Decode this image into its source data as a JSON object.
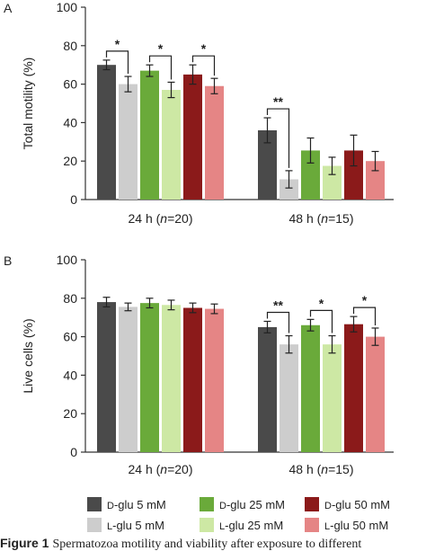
{
  "figure": {
    "caption_label": "Figure 1",
    "caption_text": "Spermatozoa motility and viability after exposure to different"
  },
  "colors": {
    "D-glu 5 mM": "#4a4a4a",
    "L-glu 5 mM": "#cdcdcd",
    "D-glu 25 mM": "#6aaa3a",
    "L-glu 25 mM": "#cde8a4",
    "D-glu 50 mM": "#8b1a1a",
    "L-glu 50 mM": "#e58585"
  },
  "legend": {
    "entries": [
      "D-glu 5 mM",
      "D-glu 25 mM",
      "D-glu 50 mM",
      "L-glu 5 mM",
      "L-glu 25 mM",
      "L-glu 50 mM"
    ]
  },
  "chart_data": [
    {
      "panel": "A",
      "type": "bar",
      "ylabel": "Total motility (%)",
      "ylim": [
        0,
        100
      ],
      "yticks": [
        0,
        20,
        40,
        60,
        80,
        100
      ],
      "categories": [
        "24 h (n=20)",
        "48 h (n=15)"
      ],
      "series": [
        {
          "name": "D-glu 5 mM",
          "values": [
            70,
            36
          ],
          "errors": [
            2.5,
            6.5
          ]
        },
        {
          "name": "L-glu 5 mM",
          "values": [
            60,
            10.5
          ],
          "errors": [
            4,
            4.5
          ]
        },
        {
          "name": "D-glu 25 mM",
          "values": [
            67,
            25.5
          ],
          "errors": [
            3,
            6.5
          ]
        },
        {
          "name": "L-glu 25 mM",
          "values": [
            57,
            17.5
          ],
          "errors": [
            4,
            4.5
          ]
        },
        {
          "name": "D-glu 50 mM",
          "values": [
            65,
            25.5
          ],
          "errors": [
            5,
            8
          ]
        },
        {
          "name": "L-glu 50 mM",
          "values": [
            59,
            20
          ],
          "errors": [
            4,
            5
          ]
        }
      ],
      "significance": [
        {
          "group": 0,
          "pair": [
            0,
            1
          ],
          "label": "*"
        },
        {
          "group": 0,
          "pair": [
            2,
            3
          ],
          "label": "*"
        },
        {
          "group": 0,
          "pair": [
            4,
            5
          ],
          "label": "*"
        },
        {
          "group": 1,
          "pair": [
            0,
            1
          ],
          "label": "**"
        }
      ]
    },
    {
      "panel": "B",
      "type": "bar",
      "ylabel": "Live cells (%)",
      "ylim": [
        0,
        100
      ],
      "yticks": [
        0,
        20,
        40,
        60,
        80,
        100
      ],
      "categories": [
        "24 h (n=20)",
        "48 h (n=15)"
      ],
      "series": [
        {
          "name": "D-glu 5 mM",
          "values": [
            78,
            65
          ],
          "errors": [
            2.5,
            3
          ]
        },
        {
          "name": "L-glu 5 mM",
          "values": [
            75.5,
            56
          ],
          "errors": [
            2,
            4.5
          ]
        },
        {
          "name": "D-glu 25 mM",
          "values": [
            77.5,
            66
          ],
          "errors": [
            2.5,
            3
          ]
        },
        {
          "name": "L-glu 25 mM",
          "values": [
            76.5,
            56
          ],
          "errors": [
            2.5,
            4.5
          ]
        },
        {
          "name": "D-glu 50 mM",
          "values": [
            75,
            66.5
          ],
          "errors": [
            2.5,
            4
          ]
        },
        {
          "name": "L-glu 50 mM",
          "values": [
            74.5,
            60
          ],
          "errors": [
            2.5,
            4.5
          ]
        }
      ],
      "significance": [
        {
          "group": 1,
          "pair": [
            0,
            1
          ],
          "label": "**"
        },
        {
          "group": 1,
          "pair": [
            2,
            3
          ],
          "label": "*"
        },
        {
          "group": 1,
          "pair": [
            4,
            5
          ],
          "label": "*"
        }
      ]
    }
  ]
}
